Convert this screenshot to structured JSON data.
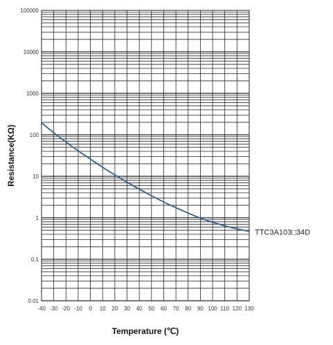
{
  "chart_data": {
    "type": "line",
    "xlabel": "Temperature (℃)",
    "ylabel": "Resistance(KΩ)",
    "x_scale": "linear",
    "y_scale": "log",
    "xlim": [
      -40,
      130
    ],
    "ylim": [
      0.01,
      100000
    ],
    "x_ticks": [
      -40,
      -30,
      -20,
      -10,
      0,
      10,
      20,
      30,
      40,
      50,
      60,
      70,
      80,
      90,
      100,
      110,
      120,
      130
    ],
    "x_tick_labels": [
      "-40",
      "-30",
      "-20",
      "-10",
      "0",
      "10",
      "20",
      "30",
      "40",
      "50",
      "60",
      "70",
      "80",
      "90",
      "100",
      "110",
      "120",
      "130"
    ],
    "y_ticks": [
      0.01,
      0.1,
      1,
      10,
      100,
      1000,
      10000,
      100000
    ],
    "y_tick_labels": [
      "0.01",
      "0.1",
      "1",
      "10",
      "100",
      "1000",
      "10000",
      "100000"
    ],
    "grid": true,
    "series": [
      {
        "name": "TTC3A103□34D",
        "color": "#2b5f9e",
        "x": [
          -40,
          -30,
          -20,
          -10,
          0,
          10,
          20,
          30,
          40,
          50,
          60,
          70,
          80,
          90,
          100,
          110,
          120,
          130
        ],
        "y": [
          195,
          112,
          67,
          41,
          26,
          16.5,
          10.8,
          7.2,
          4.9,
          3.4,
          2.4,
          1.75,
          1.3,
          0.98,
          0.78,
          0.64,
          0.54,
          0.47
        ]
      }
    ]
  }
}
